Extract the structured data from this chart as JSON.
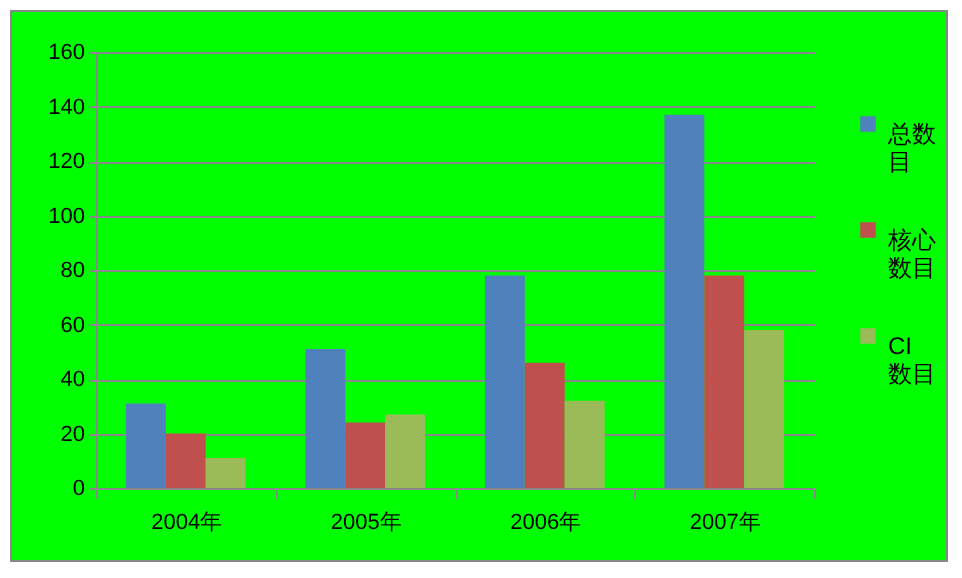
{
  "chart_data": {
    "type": "bar",
    "categories": [
      "2004年",
      "2005年",
      "2006年",
      "2007年"
    ],
    "series": [
      {
        "name": "总数目",
        "color": "#4f81bd",
        "values": [
          31,
          51,
          78,
          137
        ]
      },
      {
        "name": "核心数目",
        "color": "#c0504d",
        "values": [
          20,
          24,
          46,
          78
        ]
      },
      {
        "name": "CI数目",
        "color": "#9bbb59",
        "values": [
          11,
          27,
          32,
          58
        ]
      }
    ],
    "ylim": [
      0,
      160
    ],
    "yticks": [
      0,
      20,
      40,
      60,
      80,
      100,
      120,
      140,
      160
    ],
    "grid": "y",
    "legend": "right"
  }
}
